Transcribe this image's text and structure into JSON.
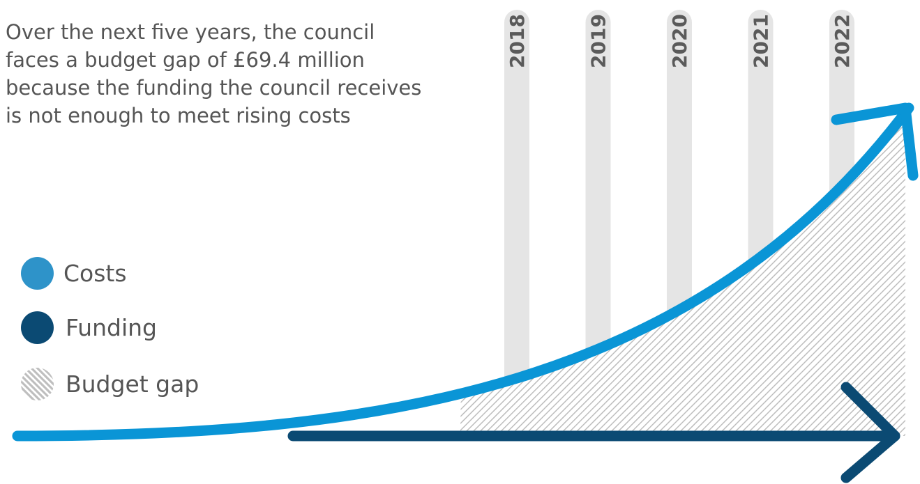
{
  "intro": {
    "lines": [
      "Over the next five years, the council",
      "faces a budget gap of £69.4 million",
      "because the funding the council receives",
      "is not enough to meet rising costs"
    ]
  },
  "colors": {
    "costs": "#0a95d6",
    "funding": "#0b4a73",
    "year_bar": "#e5e5e5",
    "year_text": "#5a5a5a",
    "hatch": "#bdbdbd",
    "text": "#555555"
  },
  "legend": [
    {
      "key": "costs",
      "label": "Costs",
      "swatch": "circle",
      "color": "#2e93c9"
    },
    {
      "key": "funding",
      "label": "Funding",
      "swatch": "circle",
      "color": "#0b4a73"
    },
    {
      "key": "gap",
      "label": "Budget gap",
      "swatch": "hatched-circle",
      "color": "#bdbdbd"
    }
  ],
  "chart_data": {
    "type": "area",
    "title": "",
    "xlabel": "",
    "ylabel": "",
    "x": [
      "2018",
      "2019",
      "2020",
      "2021",
      "2022"
    ],
    "series": [
      {
        "name": "Costs",
        "shape": "exponential-arrow"
      },
      {
        "name": "Funding",
        "shape": "flat-arrow"
      },
      {
        "name": "Budget gap",
        "shape": "hatched-area-between"
      }
    ],
    "annotation": "£69.4 million",
    "grid": false
  }
}
